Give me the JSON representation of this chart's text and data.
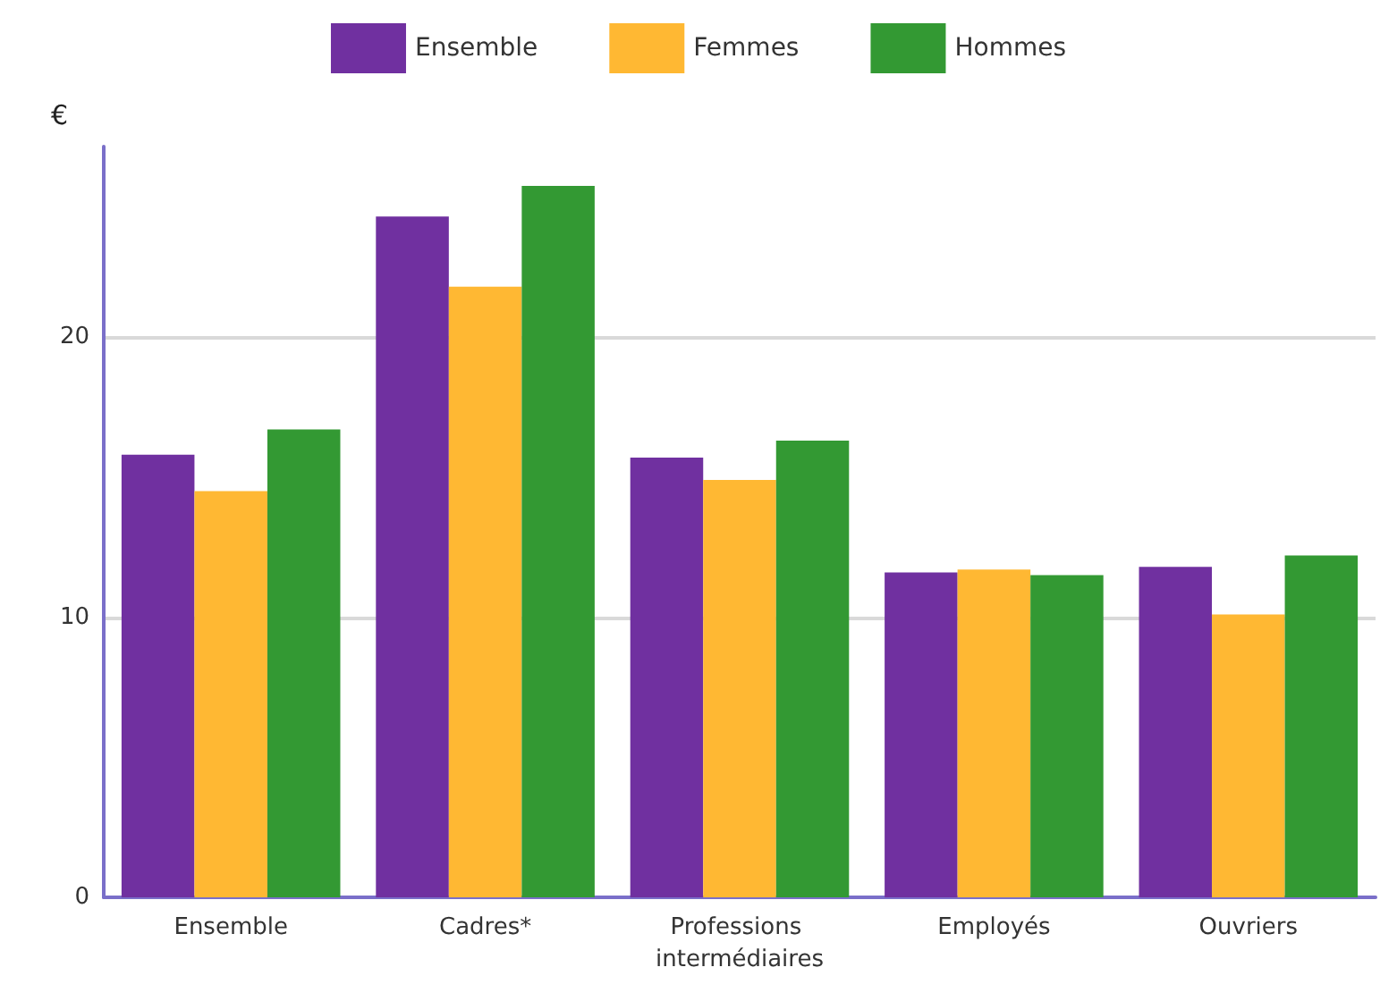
{
  "chart_data": {
    "type": "bar",
    "ylabel": "€",
    "categories": [
      "Ensemble",
      "Cadres*",
      "Professions intermédiaires",
      "Employés",
      "Ouvriers"
    ],
    "series": [
      {
        "name": "Ensemble",
        "color": "#7030a0",
        "values": [
          15.8,
          24.3,
          15.7,
          11.6,
          11.8
        ]
      },
      {
        "name": "Femmes",
        "color": "#ffb833",
        "values": [
          14.5,
          21.8,
          14.9,
          11.7,
          10.1
        ]
      },
      {
        "name": "Hommes",
        "color": "#339933",
        "values": [
          16.7,
          25.4,
          16.3,
          11.5,
          12.2
        ]
      }
    ],
    "ylim": [
      0,
      26.8
    ],
    "yticks": [
      0,
      10,
      20
    ],
    "grid": "y",
    "legend": "top"
  }
}
